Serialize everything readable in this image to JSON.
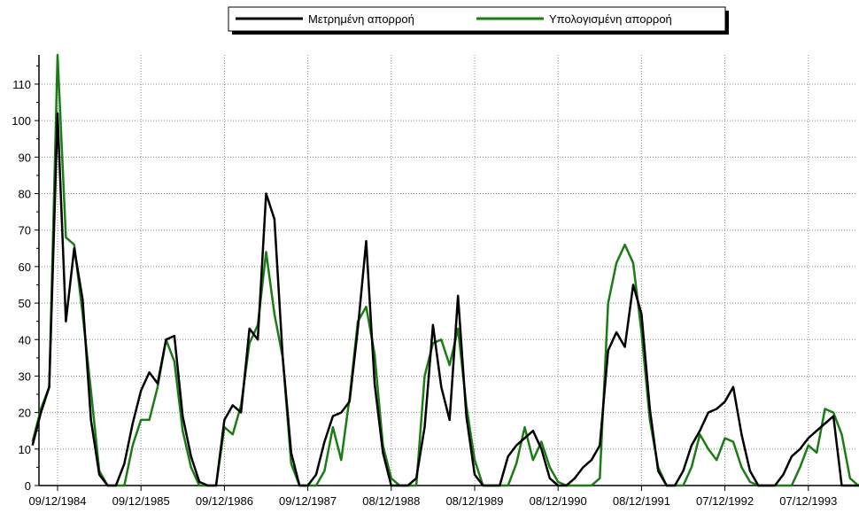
{
  "chart_data": {
    "type": "line",
    "title": "",
    "xlabel": "",
    "ylabel": "",
    "ylim": [
      0,
      118
    ],
    "grid": true,
    "legend_position": "top-center",
    "x_tick_labels": [
      "09/12/1984",
      "09/12/1985",
      "09/12/1986",
      "09/12/1987",
      "08/12/1988",
      "08/12/1989",
      "08/12/1990",
      "08/12/1991",
      "07/12/1992",
      "07/12/1993"
    ],
    "y_ticks": [
      0,
      10,
      20,
      30,
      40,
      50,
      60,
      70,
      80,
      90,
      100,
      110
    ],
    "series": [
      {
        "name": "Μετρημένη απορροή",
        "color": "#000000",
        "points": [
          [
            -0.3,
            11
          ],
          [
            -0.2,
            20
          ],
          [
            -0.1,
            27
          ],
          [
            0.0,
            102
          ],
          [
            0.1,
            45
          ],
          [
            0.2,
            65
          ],
          [
            0.3,
            51
          ],
          [
            0.4,
            18
          ],
          [
            0.5,
            3
          ],
          [
            0.6,
            0
          ],
          [
            0.7,
            0
          ],
          [
            0.8,
            6
          ],
          [
            0.9,
            17
          ],
          [
            1.0,
            26
          ],
          [
            1.1,
            31
          ],
          [
            1.2,
            28
          ],
          [
            1.3,
            40
          ],
          [
            1.4,
            41
          ],
          [
            1.5,
            19
          ],
          [
            1.6,
            8
          ],
          [
            1.7,
            1
          ],
          [
            1.8,
            0
          ],
          [
            1.9,
            0
          ],
          [
            2.0,
            18
          ],
          [
            2.1,
            22
          ],
          [
            2.2,
            20
          ],
          [
            2.3,
            43
          ],
          [
            2.4,
            40
          ],
          [
            2.5,
            80
          ],
          [
            2.6,
            73
          ],
          [
            2.7,
            35
          ],
          [
            2.8,
            9
          ],
          [
            2.9,
            0
          ],
          [
            3.0,
            0
          ],
          [
            3.1,
            3
          ],
          [
            3.2,
            12
          ],
          [
            3.3,
            19
          ],
          [
            3.4,
            20
          ],
          [
            3.5,
            23
          ],
          [
            3.6,
            43
          ],
          [
            3.7,
            67
          ],
          [
            3.8,
            28
          ],
          [
            3.9,
            9
          ],
          [
            4.0,
            0
          ],
          [
            4.1,
            0
          ],
          [
            4.2,
            0
          ],
          [
            4.3,
            2
          ],
          [
            4.4,
            16
          ],
          [
            4.5,
            44
          ],
          [
            4.6,
            27
          ],
          [
            4.7,
            18
          ],
          [
            4.8,
            52
          ],
          [
            4.9,
            19
          ],
          [
            5.0,
            3
          ],
          [
            5.1,
            0
          ],
          [
            5.2,
            0
          ],
          [
            5.3,
            0
          ],
          [
            5.4,
            8
          ],
          [
            5.5,
            11
          ],
          [
            5.6,
            13
          ],
          [
            5.7,
            15
          ],
          [
            5.8,
            10
          ],
          [
            5.9,
            2
          ],
          [
            6.0,
            0
          ],
          [
            6.1,
            0
          ],
          [
            6.2,
            2
          ],
          [
            6.3,
            5
          ],
          [
            6.4,
            7
          ],
          [
            6.5,
            11
          ],
          [
            6.6,
            37
          ],
          [
            6.7,
            42
          ],
          [
            6.8,
            38
          ],
          [
            6.9,
            55
          ],
          [
            7.0,
            47
          ],
          [
            7.1,
            21
          ],
          [
            7.2,
            4
          ],
          [
            7.3,
            0
          ],
          [
            7.4,
            0
          ],
          [
            7.5,
            4
          ],
          [
            7.6,
            11
          ],
          [
            7.7,
            15
          ],
          [
            7.8,
            20
          ],
          [
            7.9,
            21
          ],
          [
            8.0,
            23
          ],
          [
            8.1,
            27
          ],
          [
            8.2,
            14
          ],
          [
            8.3,
            4
          ],
          [
            8.4,
            0
          ],
          [
            8.5,
            0
          ],
          [
            8.6,
            0
          ],
          [
            8.7,
            3
          ],
          [
            8.8,
            8
          ],
          [
            8.9,
            10
          ],
          [
            9.0,
            13
          ],
          [
            9.1,
            15
          ],
          [
            9.2,
            17
          ],
          [
            9.3,
            19
          ],
          [
            9.4,
            0
          ],
          [
            9.5,
            0
          ],
          [
            9.6,
            0
          ],
          [
            9.7,
            0
          ],
          [
            9.8,
            0
          ],
          [
            9.9,
            0
          ],
          [
            10.0,
            1
          ],
          [
            10.1,
            7
          ],
          [
            10.2,
            11
          ],
          [
            10.3,
            26
          ],
          [
            10.4,
            75
          ],
          [
            10.5,
            42
          ],
          [
            10.6,
            25
          ],
          [
            10.7,
            8
          ],
          [
            10.8,
            2
          ],
          [
            10.9,
            0
          ]
        ]
      },
      {
        "name": "Υπολογισμένη απορροή",
        "color": "#1a7d14",
        "points": [
          [
            -0.3,
            12
          ],
          [
            -0.2,
            21
          ],
          [
            -0.1,
            27
          ],
          [
            0.0,
            118
          ],
          [
            0.1,
            68
          ],
          [
            0.2,
            66
          ],
          [
            0.3,
            47
          ],
          [
            0.4,
            26
          ],
          [
            0.5,
            4
          ],
          [
            0.6,
            0
          ],
          [
            0.7,
            0
          ],
          [
            0.8,
            0
          ],
          [
            0.9,
            11
          ],
          [
            1.0,
            18
          ],
          [
            1.1,
            18
          ],
          [
            1.2,
            27
          ],
          [
            1.3,
            40
          ],
          [
            1.4,
            34
          ],
          [
            1.5,
            15
          ],
          [
            1.6,
            5
          ],
          [
            1.7,
            0
          ],
          [
            1.8,
            0
          ],
          [
            1.9,
            0
          ],
          [
            2.0,
            16
          ],
          [
            2.1,
            14
          ],
          [
            2.2,
            22
          ],
          [
            2.3,
            39
          ],
          [
            2.4,
            44
          ],
          [
            2.5,
            64
          ],
          [
            2.6,
            47
          ],
          [
            2.7,
            35
          ],
          [
            2.8,
            6
          ],
          [
            2.9,
            0
          ],
          [
            3.0,
            0
          ],
          [
            3.1,
            0
          ],
          [
            3.2,
            4
          ],
          [
            3.3,
            16
          ],
          [
            3.4,
            7
          ],
          [
            3.5,
            24
          ],
          [
            3.6,
            45
          ],
          [
            3.7,
            49
          ],
          [
            3.8,
            36
          ],
          [
            3.9,
            11
          ],
          [
            4.0,
            2
          ],
          [
            4.1,
            0
          ],
          [
            4.2,
            0
          ],
          [
            4.3,
            0
          ],
          [
            4.4,
            30
          ],
          [
            4.5,
            39
          ],
          [
            4.6,
            40
          ],
          [
            4.7,
            33
          ],
          [
            4.8,
            43
          ],
          [
            4.9,
            22
          ],
          [
            5.0,
            7
          ],
          [
            5.1,
            0
          ],
          [
            5.2,
            0
          ],
          [
            5.3,
            0
          ],
          [
            5.4,
            0
          ],
          [
            5.5,
            6
          ],
          [
            5.6,
            16
          ],
          [
            5.7,
            7
          ],
          [
            5.8,
            12
          ],
          [
            5.9,
            5
          ],
          [
            6.0,
            1
          ],
          [
            6.1,
            0
          ],
          [
            6.2,
            0
          ],
          [
            6.3,
            0
          ],
          [
            6.4,
            0
          ],
          [
            6.5,
            2
          ],
          [
            6.6,
            50
          ],
          [
            6.7,
            61
          ],
          [
            6.8,
            66
          ],
          [
            6.9,
            61
          ],
          [
            7.0,
            42
          ],
          [
            7.1,
            18
          ],
          [
            7.2,
            5
          ],
          [
            7.3,
            0
          ],
          [
            7.4,
            0
          ],
          [
            7.5,
            0
          ],
          [
            7.6,
            5
          ],
          [
            7.7,
            14
          ],
          [
            7.8,
            10
          ],
          [
            7.9,
            7
          ],
          [
            8.0,
            13
          ],
          [
            8.1,
            12
          ],
          [
            8.2,
            5
          ],
          [
            8.3,
            1
          ],
          [
            8.4,
            0
          ],
          [
            8.5,
            0
          ],
          [
            8.6,
            0
          ],
          [
            8.7,
            0
          ],
          [
            8.8,
            0
          ],
          [
            8.9,
            5
          ],
          [
            9.0,
            11
          ],
          [
            9.1,
            9
          ],
          [
            9.2,
            21
          ],
          [
            9.3,
            20
          ],
          [
            9.4,
            14
          ],
          [
            9.5,
            2
          ],
          [
            9.6,
            0
          ],
          [
            9.7,
            0
          ],
          [
            9.8,
            0
          ],
          [
            9.9,
            0
          ],
          [
            10.0,
            0
          ],
          [
            10.1,
            39
          ],
          [
            10.2,
            20
          ],
          [
            10.3,
            57
          ],
          [
            10.4,
            82
          ],
          [
            10.5,
            68
          ],
          [
            10.6,
            47
          ],
          [
            10.7,
            21
          ],
          [
            10.8,
            3
          ],
          [
            10.9,
            0
          ]
        ]
      }
    ]
  }
}
